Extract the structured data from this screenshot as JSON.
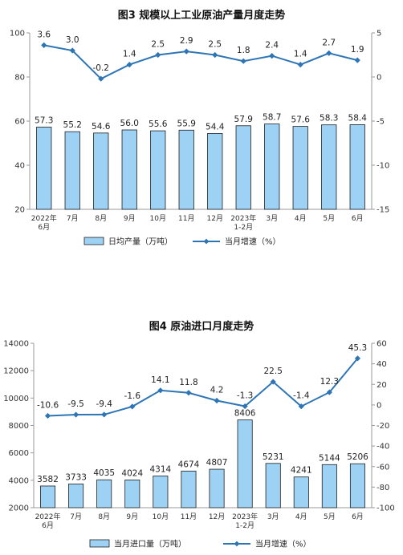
{
  "chart_data": [
    {
      "type": "bar",
      "title": "图3 规模以上工业原油产量月度走势",
      "categories": [
        "2022年\n6月",
        "7月",
        "8月",
        "9月",
        "10月",
        "11月",
        "12月",
        "2023年\n1-2月",
        "3月",
        "4月",
        "5月",
        "6月"
      ],
      "ylim": [
        20,
        100
      ],
      "y_ticks": [
        20,
        40,
        60,
        80,
        100
      ],
      "y2lim": [
        -15,
        5
      ],
      "y2_ticks": [
        -15,
        -10,
        -5,
        0,
        5
      ],
      "series": [
        {
          "name": "日均产量（万吨）",
          "type": "bar",
          "axis": "left",
          "color": "#9dd2f5",
          "values": [
            57.3,
            55.2,
            54.6,
            56.0,
            55.6,
            55.9,
            54.4,
            57.9,
            58.7,
            57.6,
            58.3,
            58.4
          ]
        },
        {
          "name": "当月增速（%）",
          "type": "line",
          "axis": "right",
          "color": "#2e75b6",
          "values": [
            3.6,
            3.0,
            -0.2,
            1.4,
            2.5,
            2.9,
            2.5,
            1.8,
            2.4,
            1.4,
            2.7,
            1.9
          ]
        }
      ],
      "bar_labels": [
        "57.3",
        "55.2",
        "54.6",
        "56.0",
        "55.6",
        "55.9",
        "54.4",
        "57.9",
        "58.7",
        "57.6",
        "58.3",
        "58.4"
      ],
      "line_labels": [
        "3.6",
        "3.0",
        "-0.2",
        "1.4",
        "2.5",
        "2.9",
        "2.5",
        "1.8",
        "2.4",
        "1.4",
        "2.7",
        "1.9"
      ],
      "legend_position": "bottom"
    },
    {
      "type": "bar",
      "title": "图4 原油进口月度走势",
      "categories": [
        "2022年\n6月",
        "7月",
        "8月",
        "9月",
        "10月",
        "11月",
        "12月",
        "2023年\n1-2月",
        "3月",
        "4月",
        "5月",
        "6月"
      ],
      "ylim": [
        2000,
        14000
      ],
      "y_ticks": [
        2000,
        4000,
        6000,
        8000,
        10000,
        12000,
        14000
      ],
      "y2lim": [
        -100,
        60
      ],
      "y2_ticks": [
        -100,
        -80,
        -60,
        -40,
        -20,
        0,
        20,
        40,
        60
      ],
      "series": [
        {
          "name": "当月进口量（万吨）",
          "type": "bar",
          "axis": "left",
          "color": "#9dd2f5",
          "values": [
            3582,
            3733,
            4035,
            4024,
            4314,
            4674,
            4807,
            8406,
            5231,
            4241,
            5144,
            5206
          ]
        },
        {
          "name": "当月增速（%）",
          "type": "line",
          "axis": "right",
          "color": "#2e75b6",
          "values": [
            -10.6,
            -9.5,
            -9.4,
            -1.6,
            14.1,
            11.8,
            4.2,
            -1.3,
            22.5,
            -1.4,
            12.3,
            45.3
          ]
        }
      ],
      "bar_labels": [
        "3582",
        "3733",
        "4035",
        "4024",
        "4314",
        "4674",
        "4807",
        "8406",
        "5231",
        "4241",
        "5144",
        "5206"
      ],
      "line_labels": [
        "-10.6",
        "-9.5",
        "-9.4",
        "-1.6",
        "14.1",
        "11.8",
        "4.2",
        "-1.3",
        "22.5",
        "-1.4",
        "12.3",
        "45.3"
      ],
      "legend_position": "bottom"
    }
  ]
}
